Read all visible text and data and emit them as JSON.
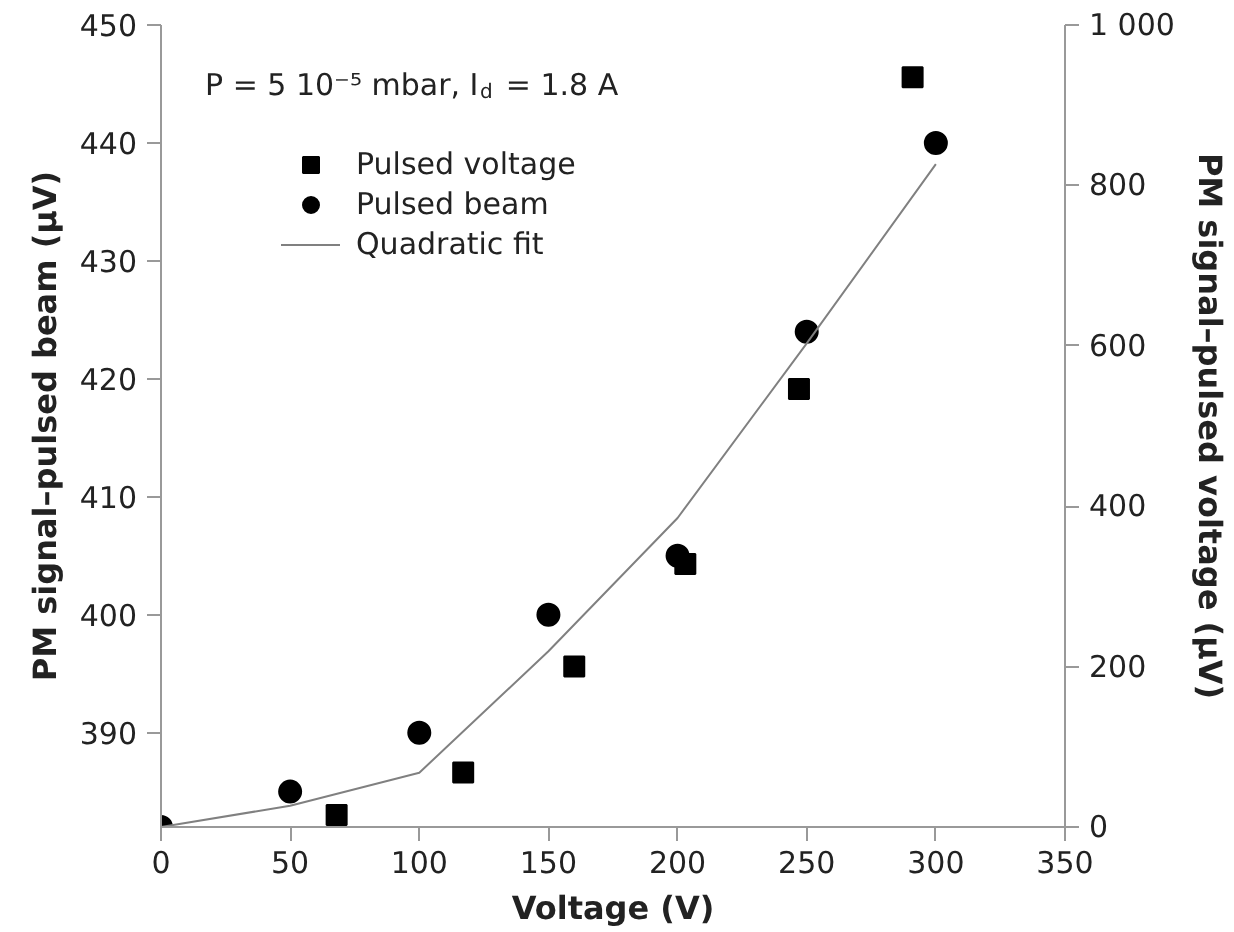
{
  "chart_data": {
    "type": "scatter",
    "xlabel": "Voltage (V)",
    "ylabel": "PM signal–pulsed beam (µV)",
    "y2label": "PM signal–pulsed voltage (µV)",
    "annotations": [
      "P = 5 10⁻⁵ mbar, I$_{d}$ = 1.8 A"
    ],
    "xlim": [
      0,
      350
    ],
    "xticks": [
      0,
      50,
      100,
      150,
      200,
      250,
      300,
      350
    ],
    "ylim": [
      382,
      450
    ],
    "yticks": [
      390,
      400,
      410,
      420,
      430,
      440,
      450
    ],
    "y2lim": [
      0,
      1000
    ],
    "y2ticks": [
      0,
      200,
      400,
      600,
      800,
      {
        "value": 1000,
        "label": "1 000"
      }
    ],
    "grid": false,
    "legend": "top left",
    "series": [
      {
        "name": "Pulsed voltage",
        "marker": "square",
        "axis": "y2",
        "color": "#000000",
        "x": [
          68,
          117,
          160,
          203,
          247,
          291
        ],
        "values": [
          15,
          68,
          200,
          328,
          546,
          935
        ]
      },
      {
        "name": "Pulsed beam",
        "marker": "circle",
        "color": "#000000",
        "x": [
          0,
          50,
          100,
          150,
          200,
          250,
          300
        ],
        "values": [
          382,
          385,
          390,
          400,
          405,
          424,
          440
        ]
      },
      {
        "name": "Quadratic fit",
        "type": "line",
        "line_style": "solid",
        "color": "#808080",
        "x": [
          0,
          50,
          100,
          150,
          200,
          250,
          300
        ],
        "values": [
          382,
          383.8,
          386.6,
          396.9,
          408.2,
          423,
          438.2
        ]
      }
    ]
  }
}
